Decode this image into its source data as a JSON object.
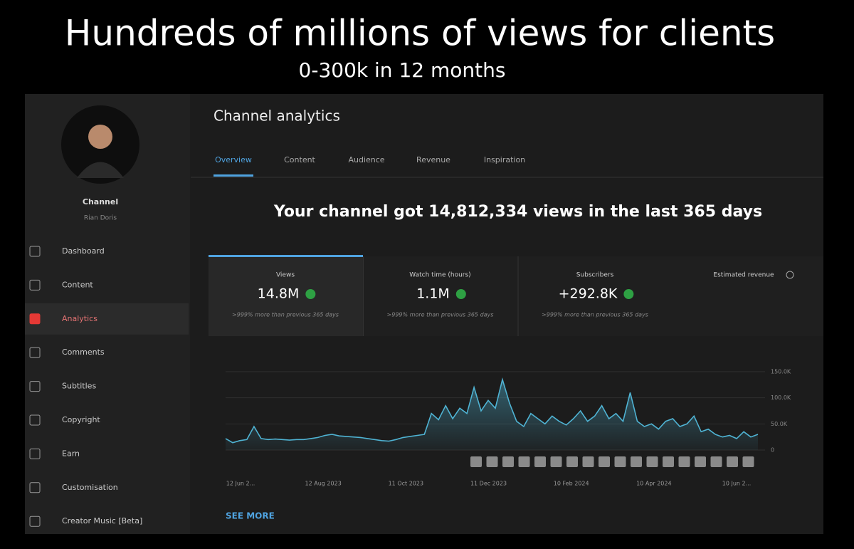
{
  "header": {
    "title": "Hundreds of millions of views for clients",
    "subtitle": "0-300k in 12 months"
  },
  "sidebar": {
    "channel_label": "Channel",
    "channel_name": "Rian Doris",
    "nav": [
      "Dashboard",
      "Content",
      "Analytics",
      "Comments",
      "Subtitles",
      "Copyright",
      "Earn",
      "Customisation",
      "Creator Music [Beta]"
    ],
    "active": 2
  },
  "main": {
    "title": "Channel analytics",
    "tabs": [
      "Overview",
      "Content",
      "Audience",
      "Revenue",
      "Inspiration"
    ],
    "active_tab": 0,
    "headline": "Your channel got 14,812,334 views in the last 365 days",
    "metrics": [
      {
        "label": "Views",
        "value": "14.8M",
        "note": ">999% more than previous 365 days"
      },
      {
        "label": "Watch time (hours)",
        "value": "1.1M",
        "note": ">999% more than previous 365 days"
      },
      {
        "label": "Subscribers",
        "value": "+292.8K",
        "note": ">999% more than previous 365 days"
      }
    ],
    "revenue_label": "Estimated revenue",
    "see_more": "SEE MORE"
  },
  "chart_data": {
    "type": "area",
    "color": "#4fb3d3",
    "x_tick_labels": [
      "12 Jun 2...",
      "12 Aug 2023",
      "11 Oct 2023",
      "11 Dec 2023",
      "10 Feb 2024",
      "10 Apr 2024",
      "10 Jun 2..."
    ],
    "values": [
      22000,
      14000,
      18000,
      20000,
      45000,
      22000,
      20000,
      21000,
      20000,
      19000,
      20000,
      20000,
      22000,
      24000,
      28000,
      30000,
      27000,
      26000,
      25000,
      24000,
      22000,
      20000,
      18000,
      17000,
      20000,
      24000,
      26000,
      28000,
      30000,
      70000,
      58000,
      85000,
      60000,
      80000,
      70000,
      120000,
      75000,
      95000,
      80000,
      135000,
      90000,
      55000,
      45000,
      70000,
      60000,
      50000,
      65000,
      55000,
      48000,
      60000,
      75000,
      55000,
      65000,
      85000,
      60000,
      70000,
      55000,
      110000,
      55000,
      45000,
      50000,
      40000,
      55000,
      60000,
      45000,
      50000,
      65000,
      35000,
      40000,
      30000,
      25000,
      28000,
      22000,
      35000,
      25000,
      30000
    ],
    "ylim": [
      0,
      150000
    ],
    "yticks": [
      {
        "value": 0,
        "label": "0"
      },
      {
        "value": 50000,
        "label": "50.0K"
      },
      {
        "value": 100000,
        "label": "100.0K"
      },
      {
        "value": 150000,
        "label": "150.0K"
      }
    ]
  }
}
